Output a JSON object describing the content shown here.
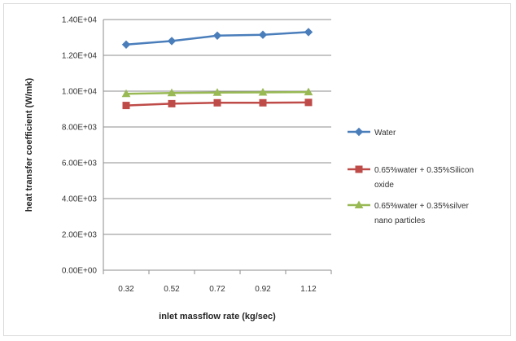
{
  "chart_data": {
    "type": "line",
    "title": "",
    "xlabel": "inlet massflow rate (kg/sec)",
    "ylabel": "heat transfer coefficient (W/mk)",
    "categories": [
      "0.32",
      "0.52",
      "0.72",
      "0.92",
      "1.12"
    ],
    "ylim": [
      0,
      14000
    ],
    "yticks": [
      "0.00E+00",
      "2.00E+03",
      "4.00E+03",
      "6.00E+03",
      "8.00E+03",
      "1.00E+04",
      "1.20E+04",
      "1.40E+04"
    ],
    "grid": "horizontal",
    "legend_position": "right",
    "series": [
      {
        "name": "Water",
        "legend_lines": [
          "Water"
        ],
        "values": [
          12600,
          12800,
          13100,
          13150,
          13300
        ],
        "color": "#4a7ebb",
        "marker": "diamond"
      },
      {
        "name": "0.65%water + 0.35%Silicon oxide",
        "legend_lines": [
          "0.65%water + 0.35%Silicon",
          "oxide"
        ],
        "values": [
          9200,
          9300,
          9350,
          9350,
          9370
        ],
        "color": "#be4b48",
        "marker": "square"
      },
      {
        "name": "0.65%water + 0.35%silver nano particles",
        "legend_lines": [
          "0.65%water + 0.35%silver",
          "nano particles"
        ],
        "values": [
          9850,
          9900,
          9920,
          9930,
          9950
        ],
        "color": "#98b954",
        "marker": "triangle"
      }
    ]
  }
}
